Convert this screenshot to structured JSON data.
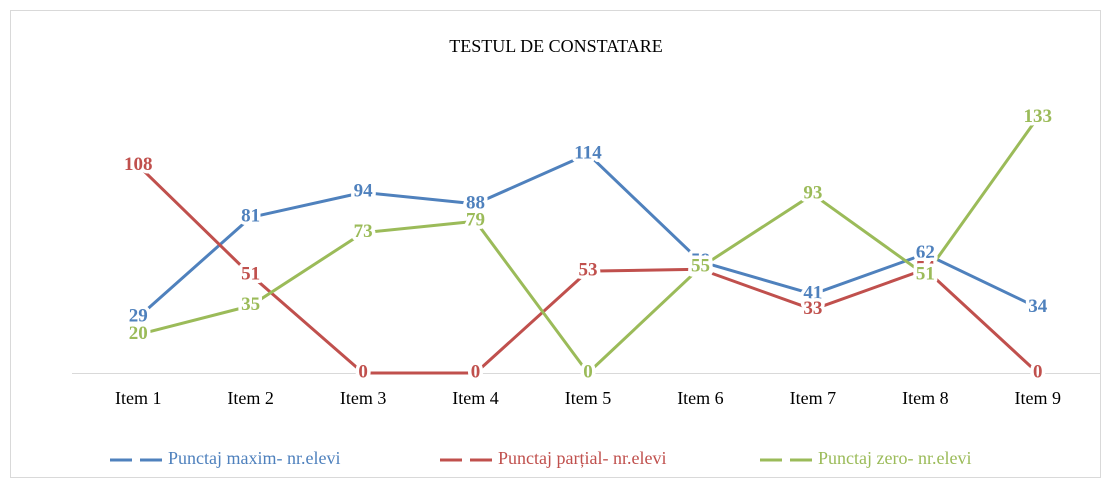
{
  "chart_data": {
    "type": "line",
    "title": "TESTUL DE CONSTATARE",
    "categories": [
      "Item 1",
      "Item 2",
      "Item 3",
      "Item 4",
      "Item 5",
      "Item 6",
      "Item 7",
      "Item 8",
      "Item 9"
    ],
    "series": [
      {
        "name": "Punctaj maxim- nr.elevi",
        "color": "#4f81bd",
        "values": [
          29,
          81,
          94,
          88,
          114,
          58,
          41,
          62,
          34
        ]
      },
      {
        "name": "Punctaj parțial- nr.elevi",
        "color": "#c0504d",
        "values": [
          108,
          51,
          0,
          0,
          53,
          54,
          33,
          54,
          0
        ]
      },
      {
        "name": "Punctaj zero- nr.elevi",
        "color": "#9bbb59",
        "values": [
          20,
          35,
          73,
          79,
          0,
          55,
          93,
          51,
          133
        ]
      }
    ],
    "ylim": [
      0,
      140
    ],
    "legend": "bottom",
    "data_labels": true
  }
}
